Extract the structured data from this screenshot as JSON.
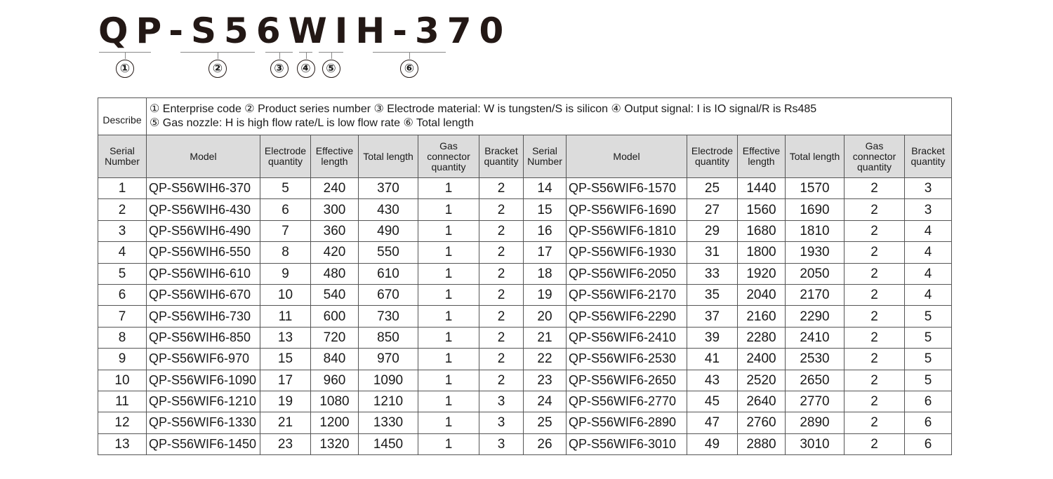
{
  "title": {
    "code": "QP-S56WIH-370",
    "segments": [
      "①",
      "②",
      "③",
      "④",
      "⑤",
      "⑥"
    ]
  },
  "describe": {
    "label": "Describe",
    "line1": "① Enterprise code ② Product series number ③ Electrode material: W is tungsten/S is silicon ④ Output signal: I is IO signal/R is Rs485",
    "line2": "⑤ Gas nozzle: H is high flow rate/L is low flow rate ⑥ Total length"
  },
  "headers": [
    "Serial Number",
    "Model",
    "Electrode quantity",
    "Effective length",
    "Total length",
    "Gas connector quantity",
    "Bracket quantity"
  ],
  "rows_left": [
    [
      "1",
      "QP-S56WIH6-370",
      "5",
      "240",
      "370",
      "1",
      "2"
    ],
    [
      "2",
      "QP-S56WIH6-430",
      "6",
      "300",
      "430",
      "1",
      "2"
    ],
    [
      "3",
      "QP-S56WIH6-490",
      "7",
      "360",
      "490",
      "1",
      "2"
    ],
    [
      "4",
      "QP-S56WIH6-550",
      "8",
      "420",
      "550",
      "1",
      "2"
    ],
    [
      "5",
      "QP-S56WIH6-610",
      "9",
      "480",
      "610",
      "1",
      "2"
    ],
    [
      "6",
      "QP-S56WIH6-670",
      "10",
      "540",
      "670",
      "1",
      "2"
    ],
    [
      "7",
      "QP-S56WIH6-730",
      "11",
      "600",
      "730",
      "1",
      "2"
    ],
    [
      "8",
      "QP-S56WIH6-850",
      "13",
      "720",
      "850",
      "1",
      "2"
    ],
    [
      "9",
      "QP-S56WIF6-970",
      "15",
      "840",
      "970",
      "1",
      "2"
    ],
    [
      "10",
      "QP-S56WIF6-1090",
      "17",
      "960",
      "1090",
      "1",
      "2"
    ],
    [
      "11",
      "QP-S56WIF6-1210",
      "19",
      "1080",
      "1210",
      "1",
      "3"
    ],
    [
      "12",
      "QP-S56WIF6-1330",
      "21",
      "1200",
      "1330",
      "1",
      "3"
    ],
    [
      "13",
      "QP-S56WIF6-1450",
      "23",
      "1320",
      "1450",
      "1",
      "3"
    ]
  ],
  "rows_right": [
    [
      "14",
      "QP-S56WIF6-1570",
      "25",
      "1440",
      "1570",
      "2",
      "3"
    ],
    [
      "15",
      "QP-S56WIF6-1690",
      "27",
      "1560",
      "1690",
      "2",
      "3"
    ],
    [
      "16",
      "QP-S56WIF6-1810",
      "29",
      "1680",
      "1810",
      "2",
      "4"
    ],
    [
      "17",
      "QP-S56WIF6-1930",
      "31",
      "1800",
      "1930",
      "2",
      "4"
    ],
    [
      "18",
      "QP-S56WIF6-2050",
      "33",
      "1920",
      "2050",
      "2",
      "4"
    ],
    [
      "19",
      "QP-S56WIF6-2170",
      "35",
      "2040",
      "2170",
      "2",
      "4"
    ],
    [
      "20",
      "QP-S56WIF6-2290",
      "37",
      "2160",
      "2290",
      "2",
      "5"
    ],
    [
      "21",
      "QP-S56WIF6-2410",
      "39",
      "2280",
      "2410",
      "2",
      "5"
    ],
    [
      "22",
      "QP-S56WIF6-2530",
      "41",
      "2400",
      "2530",
      "2",
      "5"
    ],
    [
      "23",
      "QP-S56WIF6-2650",
      "43",
      "2520",
      "2650",
      "2",
      "5"
    ],
    [
      "24",
      "QP-S56WIF6-2770",
      "45",
      "2640",
      "2770",
      "2",
      "6"
    ],
    [
      "25",
      "QP-S56WIF6-2890",
      "47",
      "2760",
      "2890",
      "2",
      "6"
    ],
    [
      "26",
      "QP-S56WIF6-3010",
      "49",
      "2880",
      "3010",
      "2",
      "6"
    ]
  ]
}
